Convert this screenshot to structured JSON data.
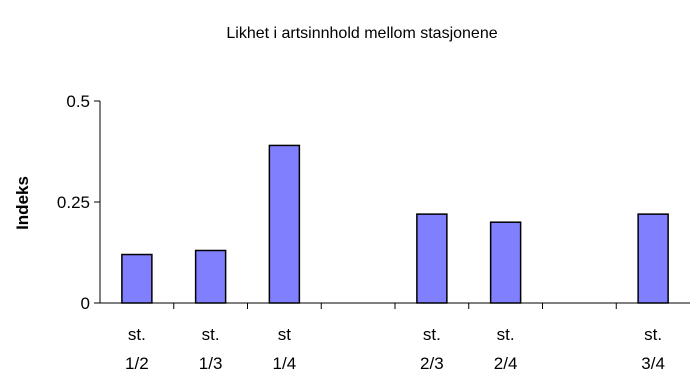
{
  "chart_data": {
    "type": "bar",
    "title": "Likhet i artsinnhold mellom stasjonene",
    "xlabel": "",
    "ylabel": "Indeks",
    "ylim": [
      0,
      0.5
    ],
    "yticks": [
      0,
      0.25,
      0.5
    ],
    "ytick_labels": [
      "0",
      "0.25",
      "0.5"
    ],
    "categories": [
      {
        "line1": "st.",
        "line2": "1/2"
      },
      {
        "line1": "st.",
        "line2": "1/3"
      },
      {
        "line1": "st",
        "line2": "1/4"
      },
      {
        "line1": "",
        "line2": ""
      },
      {
        "line1": "st.",
        "line2": "2/3"
      },
      {
        "line1": "st.",
        "line2": "2/4"
      },
      {
        "line1": "",
        "line2": ""
      },
      {
        "line1": "st.",
        "line2": "3/4"
      }
    ],
    "values": [
      0.12,
      0.13,
      0.39,
      null,
      0.22,
      0.2,
      null,
      0.22
    ],
    "bar_color": "#8080ff",
    "grid": false,
    "legend": "none"
  }
}
